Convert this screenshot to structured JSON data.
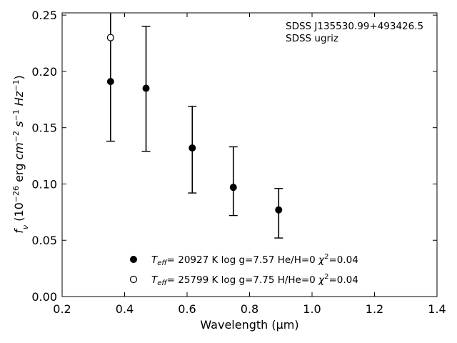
{
  "chart_data": {
    "type": "scatter",
    "xlabel": "Wavelength (μm)",
    "ylabel": "f_ν (10^-26 erg cm^-2 s^-1 Hz^-1)",
    "xlim": [
      0.2,
      1.4
    ],
    "ylim": [
      0.0,
      0.252
    ],
    "x_ticks": [
      0.2,
      0.4,
      0.6,
      0.8,
      1.0,
      1.2,
      1.4
    ],
    "x_tick_labels": [
      "0.2",
      "0.4",
      "0.6",
      "0.8",
      "1.0",
      "1.2",
      "1.4"
    ],
    "y_ticks": [
      0.0,
      0.05,
      0.1,
      0.15,
      0.2,
      0.25
    ],
    "y_tick_labels": [
      "0.00",
      "0.05",
      "0.10",
      "0.15",
      "0.20",
      "0.25"
    ],
    "grid": false,
    "annotations": [
      "SDSS J135530.99+493426.5",
      "SDSS ugriz"
    ],
    "observed": {
      "x": [
        0.3551,
        0.4686,
        0.6166,
        0.748,
        0.8932
      ],
      "y": [
        0.191,
        0.185,
        0.132,
        0.097,
        0.077
      ],
      "y_upper": [
        0.253,
        0.24,
        0.169,
        0.133,
        0.096
      ],
      "y_lower": [
        0.138,
        0.129,
        0.092,
        0.072,
        0.052
      ]
    },
    "series": [
      {
        "marker": "filled-circle",
        "label_parts": {
          "teff": "T",
          "sub": "eff",
          "rest": "= 20927 K  log g=7.57  He/H=0  ",
          "chi": "χ",
          "sup": "2",
          "chival": "=0.04"
        },
        "x": [
          0.3551,
          0.4686,
          0.6166,
          0.748,
          0.8932
        ],
        "y": [
          0.191,
          0.185,
          0.132,
          0.097,
          0.077
        ]
      },
      {
        "marker": "open-circle",
        "label_parts": {
          "teff": "T",
          "sub": "eff",
          "rest": "= 25799 K  log g=7.75  H/He=0  ",
          "chi": "χ",
          "sup": "2",
          "chival": "=0.04"
        },
        "x": [
          0.3551
        ],
        "y": [
          0.23
        ]
      }
    ],
    "legend_position": "bottom-center",
    "colors": {
      "marker": "#000000",
      "background": "#ffffff"
    }
  }
}
